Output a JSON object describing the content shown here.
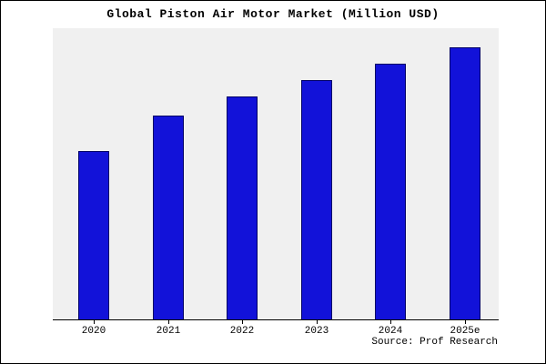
{
  "title": "Global Piston Air Motor Market (Million USD)",
  "source": "Source: Prof Research",
  "colors": {
    "bar_fill": "#1212d9",
    "bar_edge": "#000066",
    "plot_bg": "#f0f0f0",
    "frame_border": "#000000"
  },
  "chart_data": {
    "type": "bar",
    "title": "Global Piston Air Motor Market (Million USD)",
    "categories": [
      "2020",
      "2021",
      "2022",
      "2023",
      "2024",
      "2025e"
    ],
    "values": [
      62,
      75,
      82,
      88,
      94,
      100
    ],
    "xlabel": "",
    "ylabel": "",
    "ylim": [
      0,
      107
    ],
    "grid": false,
    "legend_position": "none",
    "annotations": [
      "Source: Prof Research"
    ]
  }
}
